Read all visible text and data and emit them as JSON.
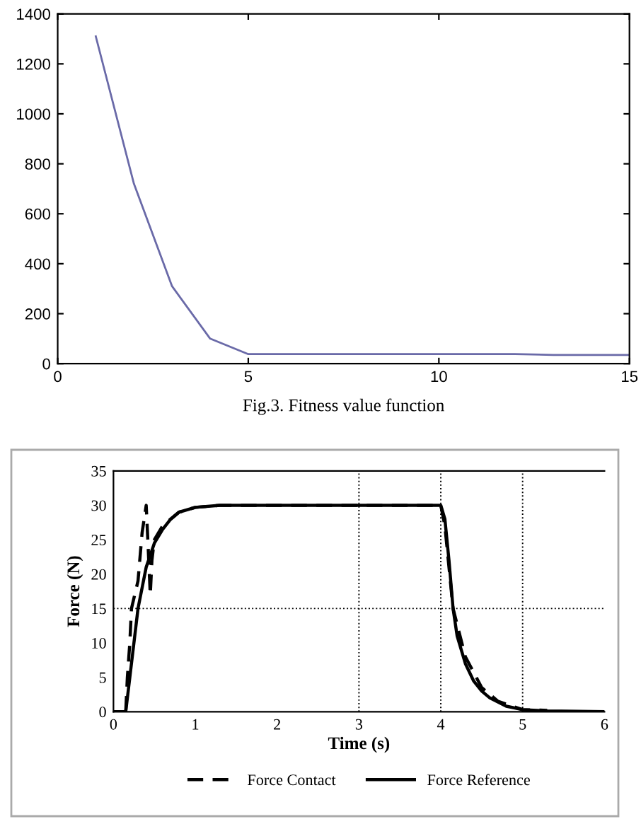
{
  "chart_data": [
    {
      "type": "line",
      "x": [
        1,
        2,
        3,
        4,
        5,
        6,
        7,
        8,
        9,
        10,
        11,
        12,
        13,
        14,
        15
      ],
      "series": [
        {
          "color": "#6a6aa8",
          "values": [
            1310,
            720,
            310,
            100,
            38,
            38,
            38,
            38,
            38,
            38,
            38,
            38,
            35,
            35,
            35
          ]
        }
      ],
      "xlim": [
        0,
        15
      ],
      "ylim": [
        0,
        1400
      ],
      "xticks": [
        0,
        5,
        10,
        15
      ],
      "yticks": [
        0,
        200,
        400,
        600,
        800,
        1000,
        1200,
        1400
      ],
      "annotations": [
        "Fig.3. Fitness value function"
      ],
      "grid": false
    },
    {
      "type": "line",
      "xlabel": "Time (s)",
      "ylabel": "Force (N)",
      "series": [
        {
          "name": "Force Contact",
          "color": "#000000",
          "line_style": "dashed",
          "x": [
            0.15,
            0.17,
            0.2,
            0.22,
            0.3,
            0.35,
            0.4,
            0.42,
            0.45,
            0.47,
            0.5,
            0.55,
            0.6,
            0.8,
            1.0,
            1.3,
            2,
            4,
            4.05,
            4.15,
            4.3,
            4.5,
            4.7,
            5,
            5.3
          ],
          "values": [
            0,
            5,
            10,
            15,
            19,
            26,
            30,
            25,
            17,
            22,
            25,
            26,
            27,
            29,
            29.7,
            30,
            30,
            30,
            27,
            15,
            8,
            3.5,
            1.5,
            0.3,
            0.2
          ]
        },
        {
          "name": "Force Reference",
          "color": "#000000",
          "line_style": "solid",
          "x": [
            0,
            0.15,
            0.2,
            0.3,
            0.4,
            0.5,
            0.6,
            0.7,
            0.8,
            1.0,
            1.3,
            2,
            4,
            4.05,
            4.1,
            4.15,
            4.2,
            4.3,
            4.4,
            4.5,
            4.6,
            4.8,
            5,
            5.3,
            6
          ],
          "values": [
            0,
            0,
            5,
            15,
            21,
            24.5,
            26.5,
            28,
            29,
            29.7,
            30,
            30,
            30,
            28,
            22,
            15,
            11,
            7,
            4.5,
            3,
            2,
            0.8,
            0.3,
            0.1,
            0
          ]
        }
      ],
      "xlim": [
        0,
        6
      ],
      "ylim": [
        0,
        35
      ],
      "xticks": [
        0,
        1,
        2,
        3,
        4,
        5,
        6
      ],
      "yticks": [
        0,
        5,
        10,
        15,
        20,
        25,
        30,
        35
      ],
      "ref_lines": [
        {
          "axis": "x",
          "value": 3,
          "line_style": "dotted"
        },
        {
          "axis": "x",
          "value": 4,
          "line_style": "dotted"
        },
        {
          "axis": "x",
          "value": 5,
          "line_style": "dotted"
        },
        {
          "axis": "y",
          "value": 15,
          "line_style": "dotted"
        }
      ],
      "legend": "bottom",
      "grid": false
    }
  ]
}
